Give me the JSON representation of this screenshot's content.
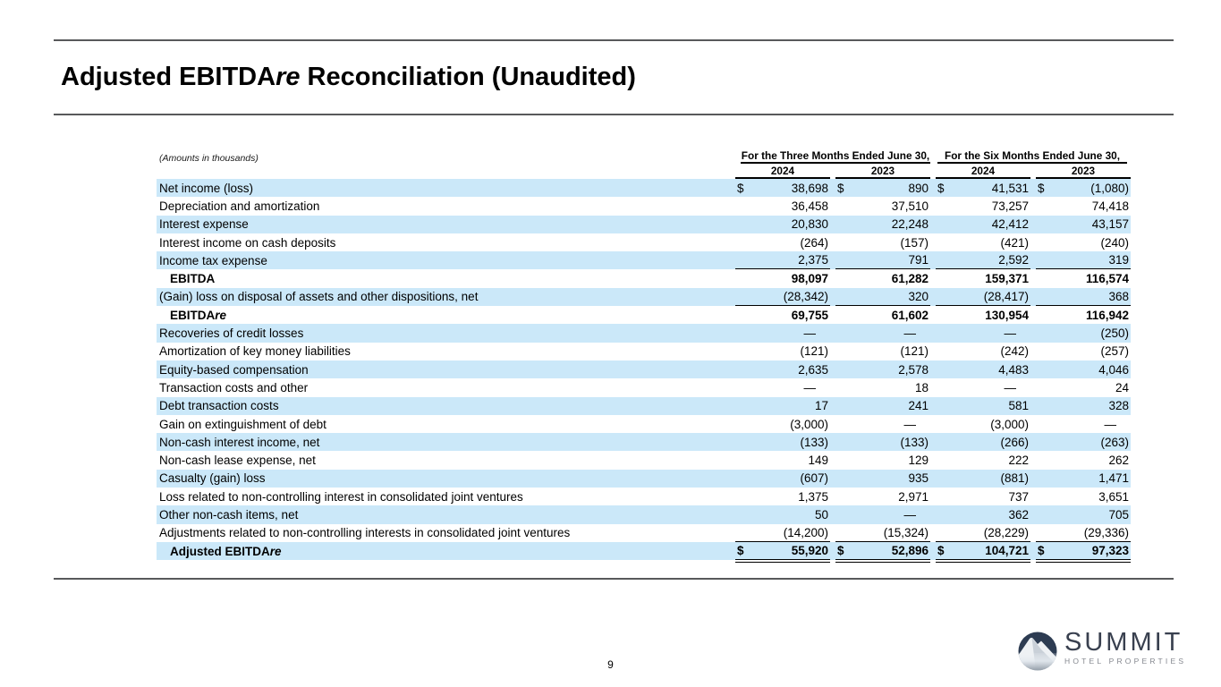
{
  "page": {
    "title_pre": "Adjusted EBITDA",
    "title_italic": "re",
    "title_post": " Reconciliation (Unaudited)",
    "page_number": "9"
  },
  "table": {
    "note": "(Amounts in thousands)",
    "currency_symbol": "$",
    "col_groups": [
      "For the Three Months Ended June 30,",
      "For the Six Months Ended June 30,"
    ],
    "years": [
      "2024",
      "2023",
      "2024",
      "2023"
    ],
    "shade_color": "#cbe8f9",
    "rows": [
      {
        "label": "Net income (loss)",
        "shaded": true,
        "dollar": true,
        "values": [
          "38,698",
          "890",
          "41,531",
          "(1,080)"
        ]
      },
      {
        "label": "Depreciation and amortization",
        "shaded": false,
        "values": [
          "36,458",
          "37,510",
          "73,257",
          "74,418"
        ]
      },
      {
        "label": "Interest expense",
        "shaded": true,
        "values": [
          "20,830",
          "22,248",
          "42,412",
          "43,157"
        ]
      },
      {
        "label": "Interest income on cash deposits",
        "shaded": false,
        "values": [
          "(264)",
          "(157)",
          "(421)",
          "(240)"
        ]
      },
      {
        "label": "Income tax expense",
        "shaded": true,
        "border": "single",
        "values": [
          "2,375",
          "791",
          "2,592",
          "319"
        ]
      },
      {
        "label": "EBITDA",
        "shaded": false,
        "bold": true,
        "indent": true,
        "values": [
          "98,097",
          "61,282",
          "159,371",
          "116,574"
        ]
      },
      {
        "label": "(Gain) loss on disposal of assets and other dispositions, net",
        "shaded": true,
        "border": "single",
        "values": [
          "(28,342)",
          "320",
          "(28,417)",
          "368"
        ]
      },
      {
        "label_main": "EBITDA",
        "label_italic": "re",
        "shaded": false,
        "bold": true,
        "indent": true,
        "values": [
          "69,755",
          "61,602",
          "130,954",
          "116,942"
        ]
      },
      {
        "label": "Recoveries of credit losses",
        "shaded": true,
        "values": [
          "—",
          "—",
          "—",
          "(250)"
        ]
      },
      {
        "label": "Amortization of key money liabilities",
        "shaded": false,
        "values": [
          "(121)",
          "(121)",
          "(242)",
          "(257)"
        ]
      },
      {
        "label": "Equity-based compensation",
        "shaded": true,
        "values": [
          "2,635",
          "2,578",
          "4,483",
          "4,046"
        ]
      },
      {
        "label": "Transaction costs and other",
        "shaded": false,
        "values": [
          "—",
          "18",
          "—",
          "24"
        ]
      },
      {
        "label": "Debt transaction costs",
        "shaded": true,
        "values": [
          "17",
          "241",
          "581",
          "328"
        ]
      },
      {
        "label": "Gain on extinguishment of debt",
        "shaded": false,
        "values": [
          "(3,000)",
          "—",
          "(3,000)",
          "—"
        ]
      },
      {
        "label": "Non-cash interest income, net",
        "shaded": true,
        "values": [
          "(133)",
          "(133)",
          "(266)",
          "(263)"
        ]
      },
      {
        "label": "Non-cash lease expense, net",
        "shaded": false,
        "values": [
          "149",
          "129",
          "222",
          "262"
        ]
      },
      {
        "label": "Casualty (gain) loss",
        "shaded": true,
        "values": [
          "(607)",
          "935",
          "(881)",
          "1,471"
        ]
      },
      {
        "label": "Loss related to non-controlling interest in consolidated joint ventures",
        "shaded": false,
        "values": [
          "1,375",
          "2,971",
          "737",
          "3,651"
        ]
      },
      {
        "label": "Other non-cash items, net",
        "shaded": true,
        "values": [
          "50",
          "—",
          "362",
          "705"
        ]
      },
      {
        "label": "Adjustments related to non-controlling interests in consolidated joint ventures",
        "shaded": false,
        "border": "single",
        "values": [
          "(14,200)",
          "(15,324)",
          "(28,229)",
          "(29,336)"
        ]
      },
      {
        "label_main": "Adjusted EBITDA",
        "label_italic": "re",
        "shaded": true,
        "bold": true,
        "indent": true,
        "dollar": true,
        "border": "double",
        "values": [
          "55,920",
          "52,896",
          "104,721",
          "97,323"
        ]
      }
    ]
  },
  "logo": {
    "name": "SUMMIT",
    "subtitle": "HOTEL PROPERTIES",
    "icon_sky_color": "#2d3c52",
    "icon_mountain_color": "#eef1f4"
  }
}
